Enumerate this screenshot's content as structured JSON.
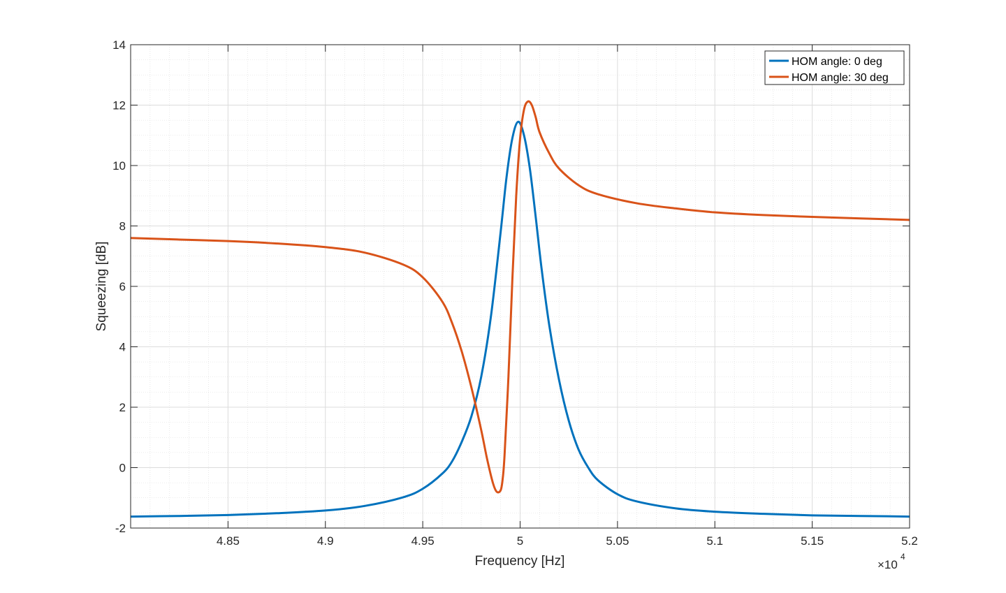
{
  "chart_data": {
    "type": "line",
    "title": "",
    "xlabel": "Frequency [Hz]",
    "ylabel": "Squeezing [dB]",
    "x_exponent_label": "×10",
    "x_exponent_power": "4",
    "xlim": [
      48000,
      52000
    ],
    "ylim": [
      -2,
      14
    ],
    "x_ticks": [
      48500,
      49000,
      49500,
      50000,
      50500,
      51000,
      51500,
      52000
    ],
    "x_tick_labels": [
      "4.85",
      "4.9",
      "4.95",
      "5",
      "5.05",
      "5.1",
      "5.15",
      "5.2"
    ],
    "y_ticks": [
      -2,
      0,
      2,
      4,
      6,
      8,
      10,
      12,
      14
    ],
    "y_tick_labels": [
      "-2",
      "0",
      "2",
      "4",
      "6",
      "8",
      "10",
      "12",
      "14"
    ],
    "grid": true,
    "minor_grid": true,
    "legend_position": "top-right",
    "series": [
      {
        "name": "HOM angle: 0 deg",
        "color": "#0072BD",
        "x": [
          48000,
          48250,
          48500,
          48750,
          49000,
          49200,
          49400,
          49500,
          49600,
          49650,
          49700,
          49750,
          49800,
          49850,
          49900,
          49930,
          49960,
          49990,
          50020,
          50050,
          50080,
          50110,
          50150,
          50200,
          50250,
          50300,
          50350,
          50400,
          50500,
          50600,
          50800,
          51000,
          51250,
          51500,
          51750,
          52000
        ],
        "y": [
          -1.62,
          -1.6,
          -1.57,
          -1.51,
          -1.42,
          -1.27,
          -0.98,
          -0.7,
          -0.2,
          0.2,
          0.85,
          1.7,
          3.0,
          5.0,
          7.8,
          9.6,
          10.9,
          11.45,
          11.0,
          9.9,
          8.3,
          6.6,
          4.7,
          2.9,
          1.55,
          0.6,
          0.0,
          -0.42,
          -0.88,
          -1.12,
          -1.35,
          -1.46,
          -1.53,
          -1.58,
          -1.6,
          -1.62
        ]
      },
      {
        "name": "HOM angle: 30 deg",
        "color": "#D95319",
        "x": [
          48000,
          48250,
          48500,
          48750,
          49000,
          49200,
          49400,
          49500,
          49600,
          49650,
          49700,
          49750,
          49800,
          49830,
          49860,
          49880,
          49900,
          49910,
          49920,
          49940,
          49960,
          49980,
          50000,
          50020,
          50040,
          50060,
          50080,
          50100,
          50150,
          50200,
          50300,
          50400,
          50600,
          50800,
          51000,
          51250,
          51500,
          51750,
          52000
        ],
        "y": [
          7.6,
          7.55,
          7.5,
          7.42,
          7.3,
          7.12,
          6.72,
          6.3,
          5.5,
          4.8,
          3.85,
          2.65,
          1.25,
          0.3,
          -0.5,
          -0.8,
          -0.75,
          -0.4,
          0.4,
          3.0,
          6.2,
          9.0,
          10.9,
          11.85,
          12.12,
          12.0,
          11.6,
          11.1,
          10.4,
          9.9,
          9.35,
          9.05,
          8.75,
          8.58,
          8.45,
          8.36,
          8.3,
          8.25,
          8.2
        ]
      }
    ]
  }
}
